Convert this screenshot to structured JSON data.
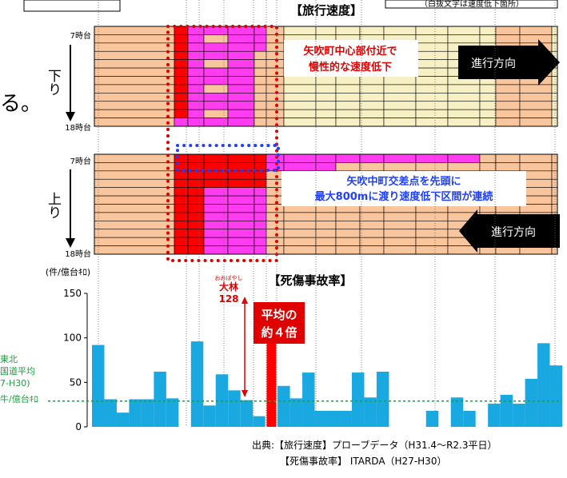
{
  "header": {
    "speed_title": "【旅行速度】",
    "speed_note": "（白抜文字は速度低下箇所）",
    "left_text_fragment": "る。"
  },
  "speed_panels": {
    "down": {
      "label": "下り",
      "start": "7時台",
      "end": "18時台",
      "direction": "進行方向",
      "direction_side": "right"
    },
    "up": {
      "label": "上り",
      "start": "7時台",
      "end": "18時台",
      "direction": "進行方向",
      "direction_side": "left"
    }
  },
  "annotations": {
    "red_box_text_1": "矢吹町中心部付近で",
    "red_box_text_2": "慢性的な速度低下",
    "blue_box_text_1": "矢吹中町交差点を先頭に",
    "blue_box_text_2": "最大800mに渡り速度低下区間が連続"
  },
  "accident": {
    "title": "【死傷事故率】",
    "unit": "(件/億台ｷﾛ)",
    "highlight_ruby": "おおばやし",
    "highlight_name": "大林",
    "highlight_value_label": "128",
    "callout_1": "平均の",
    "callout_2": "約４倍",
    "avg_label_1": "東北",
    "avg_label_2": "国道平均",
    "avg_label_3": "7-H30)",
    "avg_label_4": "牛/億台ｷﾛ"
  },
  "source": {
    "line1": "出典:【旅行速度】プローブデータ（H31.4～R2.3平日）",
    "line2": "【死傷事故率】 ITARDA（H27-H30）"
  },
  "colors": {
    "bar": "#1aa8e0",
    "highlight_bar": "#ff0000",
    "average_line": "#1aa03a",
    "speed_slow": "#ff0000",
    "speed_mid": "#ff3cf0",
    "speed_ok": "#f9c59d",
    "speed_free": "#f6f0c4"
  },
  "chart_data": {
    "type": "bar",
    "ylim": [
      0,
      150
    ],
    "yticks": [
      0,
      50,
      100,
      150
    ],
    "average": 29,
    "highlight_index": 14,
    "values": [
      92,
      31,
      16,
      31,
      31,
      62,
      32,
      0,
      96,
      24,
      59,
      41,
      30,
      12,
      128,
      46,
      32,
      61,
      18,
      18,
      18,
      61,
      33,
      62,
      0,
      0,
      0,
      18,
      0,
      33,
      18,
      0,
      26,
      36,
      26,
      54,
      94,
      69
    ]
  }
}
